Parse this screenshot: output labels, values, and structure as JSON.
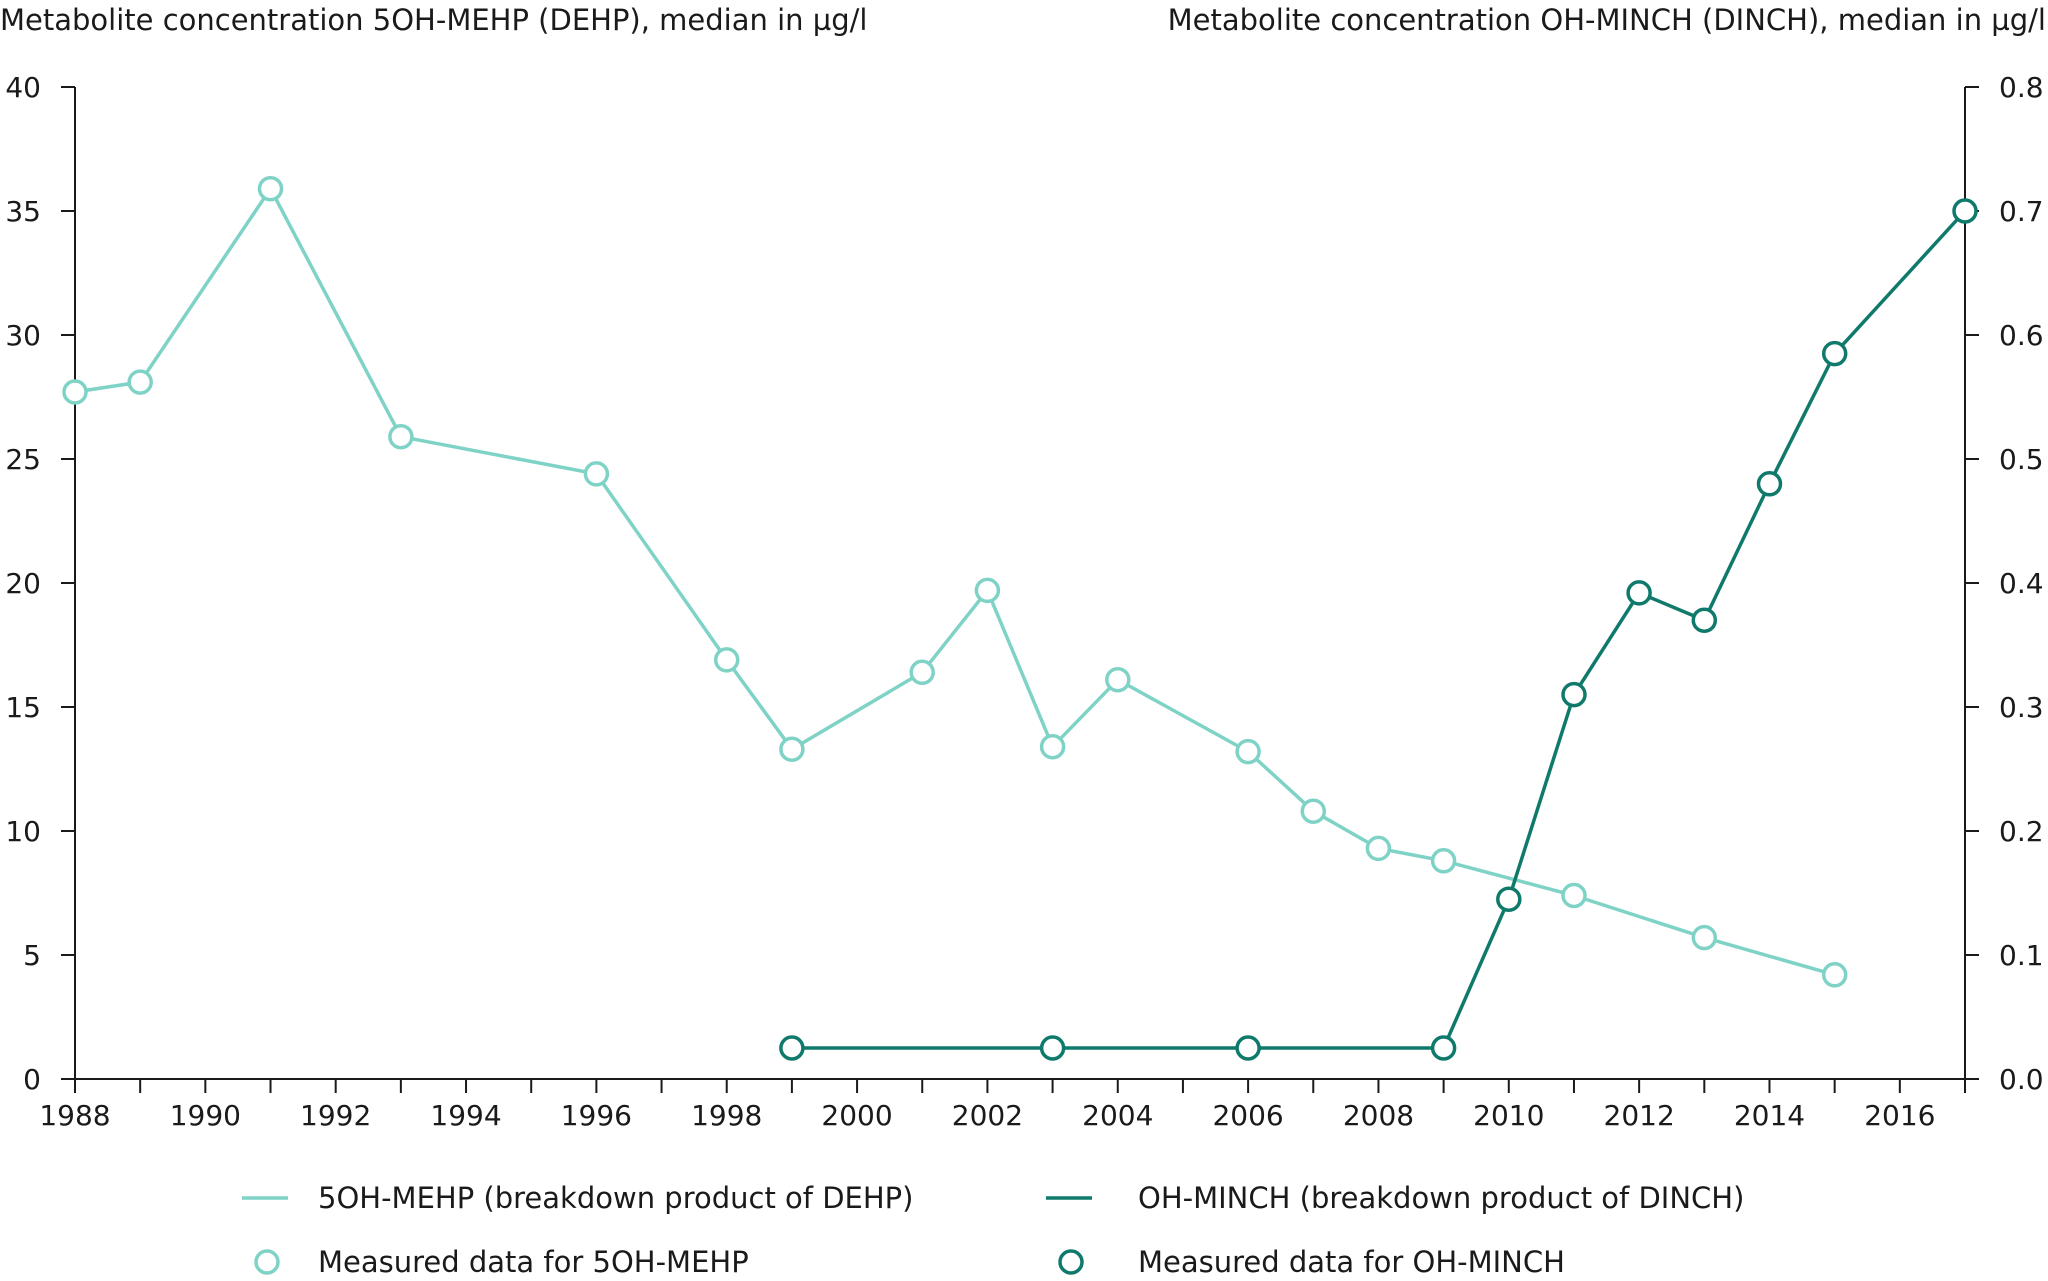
{
  "colors": {
    "mehp": "#7fd3c6",
    "minch": "#0f7a6c",
    "axis": "#1a1a1a"
  },
  "chart_data": {
    "type": "line",
    "left_axis_title": "Metabolite concentration 5OH-MEHP (DEHP), median in µg/l",
    "right_axis_title": "Metabolite concentration OH-MINCH (DINCH), median in µg/l",
    "xlim": [
      1988,
      2017
    ],
    "x_ticks": [
      "1988",
      "1990",
      "1992",
      "1994",
      "1996",
      "1998",
      "2000",
      "2002",
      "2004",
      "2006",
      "2008",
      "2010",
      "2012",
      "2014",
      "2016"
    ],
    "y_left_lim": [
      0,
      40
    ],
    "y_left_ticks": [
      "0",
      "5",
      "10",
      "15",
      "20",
      "25",
      "30",
      "35",
      "40"
    ],
    "y_right_lim": [
      0,
      0.8
    ],
    "y_right_ticks": [
      "0.0",
      "0.1",
      "0.2",
      "0.3",
      "0.4",
      "0.5",
      "0.6",
      "0.7",
      "0.8"
    ],
    "grid": false,
    "legend_position": "bottom",
    "series": [
      {
        "name": "5OH-MEHP (breakdown product of DEHP)",
        "marker_name": "Measured data for 5OH-MEHP",
        "axis": "left",
        "x": [
          1988,
          1989,
          1991,
          1993,
          1996,
          1998,
          1999,
          2001,
          2002,
          2003,
          2004,
          2006,
          2007,
          2008,
          2009,
          2011,
          2013,
          2015
        ],
        "y": [
          27.7,
          28.1,
          35.9,
          25.9,
          24.4,
          16.9,
          13.3,
          16.4,
          19.7,
          13.4,
          16.1,
          13.2,
          10.8,
          9.3,
          8.8,
          7.4,
          5.7,
          4.2
        ]
      },
      {
        "name": "OH-MINCH (breakdown product of DINCH)",
        "marker_name": "Measured data for OH-MINCH",
        "axis": "right",
        "x": [
          1999,
          2003,
          2006,
          2009,
          2010,
          2011,
          2012,
          2013,
          2014,
          2015,
          2017
        ],
        "y": [
          0.025,
          0.025,
          0.025,
          0.025,
          0.145,
          0.31,
          0.392,
          0.37,
          0.48,
          0.585,
          0.7
        ]
      }
    ]
  }
}
